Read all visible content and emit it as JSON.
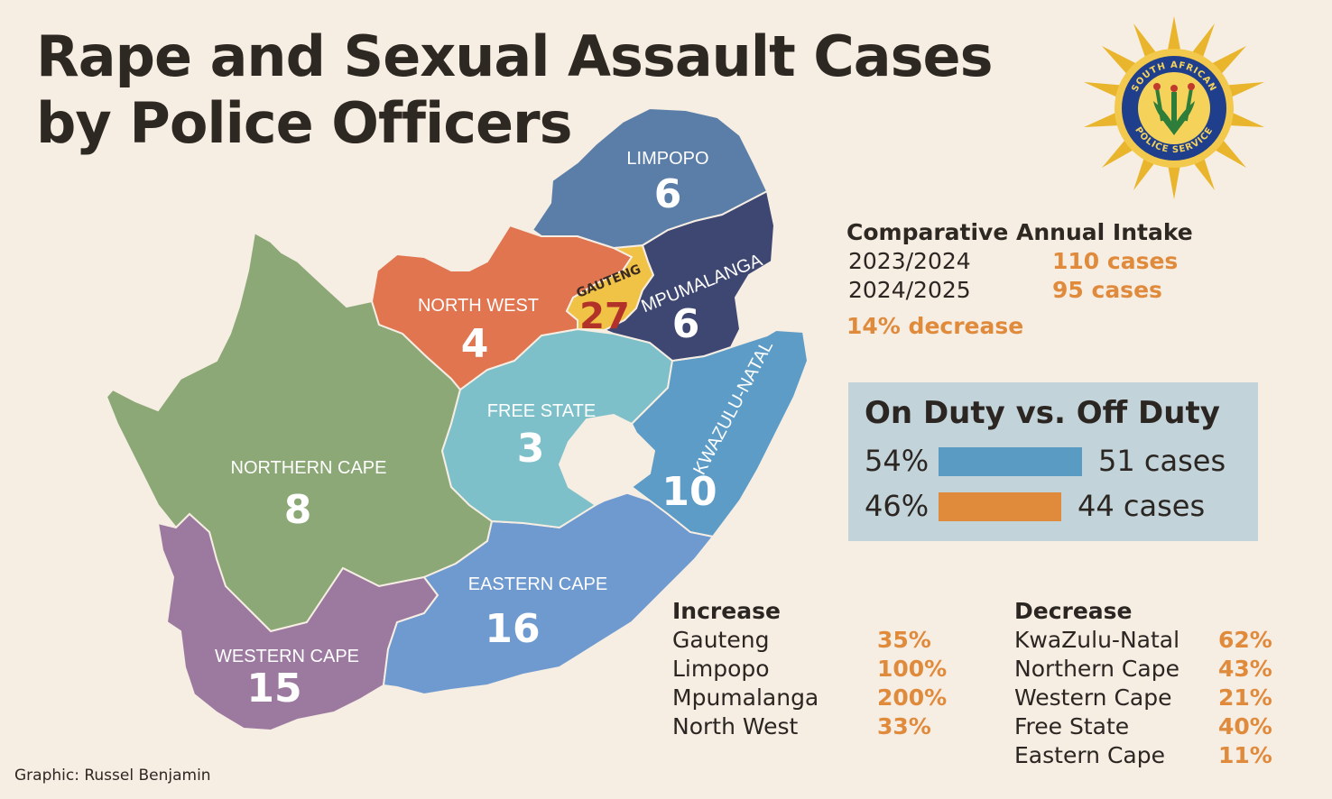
{
  "title": {
    "line1": "Rape and Sexual Assault Cases",
    "line2": "by Police Officers"
  },
  "badge": {
    "text": "SOUTH AFRICAN POLICE SERVICE",
    "top_text": "SOUTH AFRICAN",
    "bottom_text": "POLICE SERVICE"
  },
  "map": {
    "provinces": [
      {
        "name": "LIMPOPO",
        "cases": "6",
        "color": "#5b7ea9"
      },
      {
        "name": "MPUMALANGA",
        "cases": "6",
        "color": "#3e4772"
      },
      {
        "name": "GAUTENG",
        "cases": "27",
        "color": "#f0c347"
      },
      {
        "name": "NORTH WEST",
        "cases": "4",
        "color": "#e07550"
      },
      {
        "name": "FREE STATE",
        "cases": "3",
        "color": "#7dc0c9"
      },
      {
        "name": "KWAZULU-NATAL",
        "cases": "10",
        "color": "#5d9cc6"
      },
      {
        "name": "NORTHERN CAPE",
        "cases": "8",
        "color": "#8ba876"
      },
      {
        "name": "EASTERN CAPE",
        "cases": "16",
        "color": "#6f9acf"
      },
      {
        "name": "WESTERN CAPE",
        "cases": "15",
        "color": "#9c7aa0"
      }
    ]
  },
  "intake": {
    "heading": "Comparative Annual Intake",
    "rows": [
      {
        "year": "2023/2024",
        "value": "110 cases"
      },
      {
        "year": "2024/2025",
        "value": "95 cases"
      }
    ],
    "change": "14% decrease"
  },
  "duty": {
    "heading": "On Duty vs. Off Duty",
    "rows": [
      {
        "percent": "54%",
        "percent_value": 54,
        "cases": "51 cases",
        "color": "#5a9bc4"
      },
      {
        "percent": "46%",
        "percent_value": 46,
        "cases": "44 cases",
        "color": "#e08a3c"
      }
    ]
  },
  "increase": {
    "heading": "Increase",
    "rows": [
      {
        "province": "Gauteng",
        "value": "35%"
      },
      {
        "province": "Limpopo",
        "value": "100%"
      },
      {
        "province": "Mpumalanga",
        "value": "200%"
      },
      {
        "province": "North West",
        "value": "33%"
      }
    ]
  },
  "decrease": {
    "heading": "Decrease",
    "rows": [
      {
        "province": "KwaZulu-Natal",
        "value": "62%"
      },
      {
        "province": "Northern Cape",
        "value": "43%"
      },
      {
        "province": "Western Cape",
        "value": "21%"
      },
      {
        "province": "Free State",
        "value": "40%"
      },
      {
        "province": "Eastern Cape",
        "value": "11%"
      }
    ]
  },
  "credit": "Graphic: Russel Benjamin",
  "colors": {
    "accent": "#e08a3c",
    "background": "#f6ede3",
    "panel": "#c3d3da"
  }
}
